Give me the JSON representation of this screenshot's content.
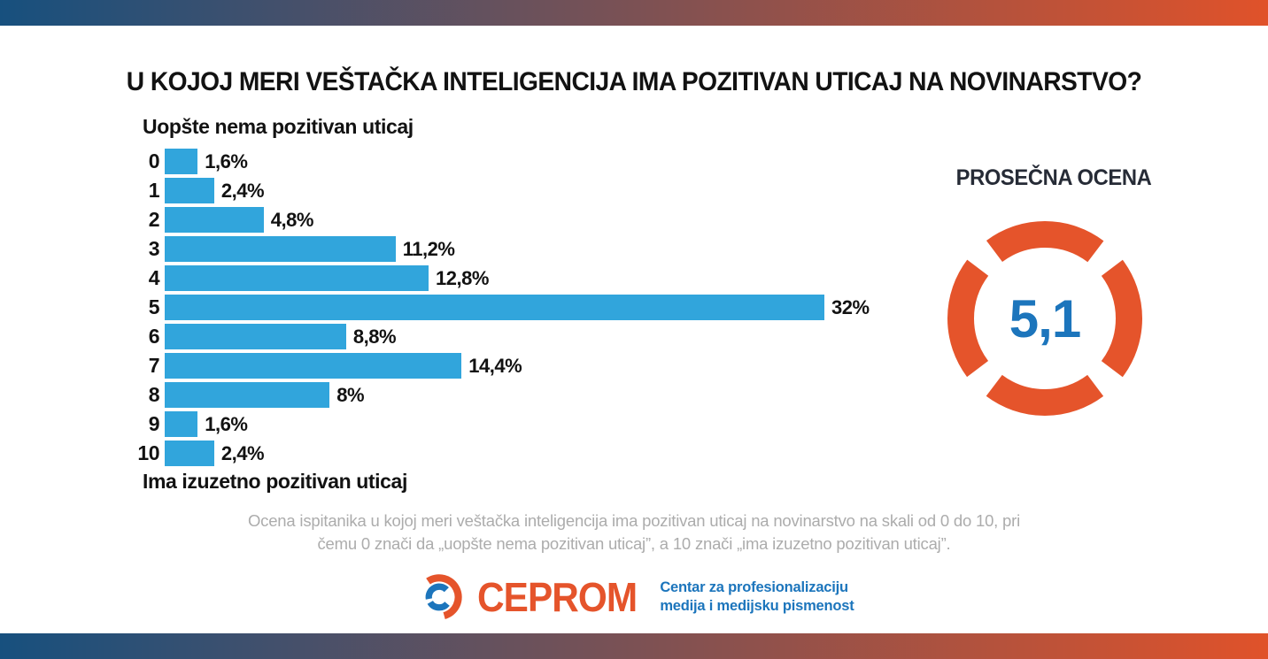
{
  "colors": {
    "bar_blue": "#31A5DC",
    "orange": "#E5542B",
    "blue": "#1C75BC",
    "gradient_left": "#17507E",
    "gradient_right": "#E0522A",
    "dark_navy": "#262B36",
    "caption_gray": "#ACACAC"
  },
  "chart_data": {
    "type": "bar",
    "orientation": "horizontal",
    "title": "U KOJOJ MERI VEŠTAČKA INTELIGENCIJA IMA POZITIVAN UTICAJ NA NOVINARSTVO?",
    "scale_top_label": "Uopšte nema pozitivan uticaj",
    "scale_bottom_label": "Ima izuzetno pozitivan uticaj",
    "categories": [
      "0",
      "1",
      "2",
      "3",
      "4",
      "5",
      "6",
      "7",
      "8",
      "9",
      "10"
    ],
    "values": [
      1.6,
      2.4,
      4.8,
      11.2,
      12.8,
      32,
      8.8,
      14.4,
      8,
      1.6,
      2.4
    ],
    "value_labels": [
      "1,6%",
      "2,4%",
      "4,8%",
      "11,2%",
      "12,8%",
      "32%",
      "8,8%",
      "14,4%",
      "8%",
      "1,6%",
      "2,4%"
    ],
    "xlim": [
      0,
      32
    ],
    "grid": false,
    "legend": false
  },
  "average_score": {
    "label": "PROSEČNA OCENA",
    "value": "5,1"
  },
  "caption": "Ocena ispitanika u kojoj meri veštačka inteligencija ima pozitivan uticaj na novinarstvo na skali od 0 do 10, pri čemu 0 znači da „uopšte nema pozitivan uticaj”, a 10 znači „ima izuzetno pozitivan uticaj”.",
  "logo": {
    "name": "CEPROM",
    "tagline_line1": "Centar za profesionalizaciju",
    "tagline_line2": "medija i medijsku pismenost"
  }
}
